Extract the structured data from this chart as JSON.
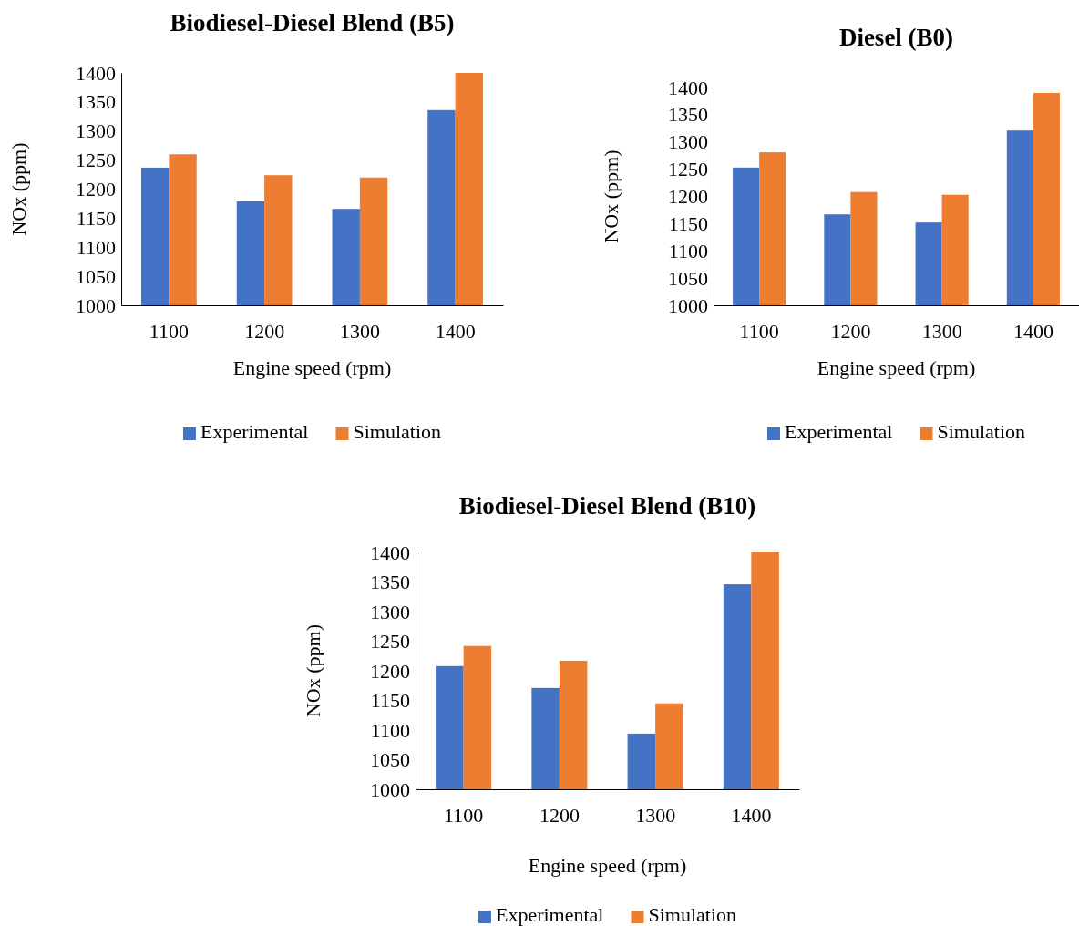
{
  "chart_data": [
    {
      "type": "bar",
      "title": "Biodiesel-Diesel Blend (B5)",
      "xlabel": "Engine speed (rpm)",
      "ylabel": "NOx (ppm)",
      "categories": [
        "1100",
        "1200",
        "1300",
        "1400"
      ],
      "series": [
        {
          "name": "Experimental",
          "color": "#4472c4",
          "values": [
            1237,
            1179,
            1166,
            1336
          ]
        },
        {
          "name": "Simulation",
          "color": "#ed7d31",
          "values": [
            1260,
            1224,
            1220,
            1400
          ]
        }
      ],
      "ylim": [
        1000,
        1400
      ],
      "yticks": [
        1000,
        1050,
        1100,
        1150,
        1200,
        1250,
        1300,
        1350,
        1400
      ],
      "legend": "bottom"
    },
    {
      "type": "bar",
      "title": "Diesel  (B0)",
      "xlabel": "Engine speed (rpm)",
      "ylabel": "NOx (ppm)",
      "categories": [
        "1100",
        "1200",
        "1300",
        "1400"
      ],
      "series": [
        {
          "name": "Experimental",
          "color": "#4472c4",
          "values": [
            1253,
            1167,
            1152,
            1321
          ]
        },
        {
          "name": "Simulation",
          "color": "#ed7d31",
          "values": [
            1281,
            1208,
            1203,
            1390
          ]
        }
      ],
      "ylim": [
        1000,
        1400
      ],
      "yticks": [
        1000,
        1050,
        1100,
        1150,
        1200,
        1250,
        1300,
        1350,
        1400
      ],
      "legend": "bottom"
    },
    {
      "type": "bar",
      "title": "Biodiesel-Diesel Blend (B10)",
      "xlabel": "Engine speed (rpm)",
      "ylabel": "NOx (ppm)",
      "categories": [
        "1100",
        "1200",
        "1300",
        "1400"
      ],
      "series": [
        {
          "name": "Experimental",
          "color": "#4472c4",
          "values": [
            1208,
            1171,
            1094,
            1346
          ]
        },
        {
          "name": "Simulation",
          "color": "#ed7d31",
          "values": [
            1242,
            1217,
            1145,
            1400
          ]
        }
      ],
      "ylim": [
        1000,
        1400
      ],
      "yticks": [
        1000,
        1050,
        1100,
        1150,
        1200,
        1250,
        1300,
        1350,
        1400
      ],
      "legend": "bottom"
    }
  ]
}
